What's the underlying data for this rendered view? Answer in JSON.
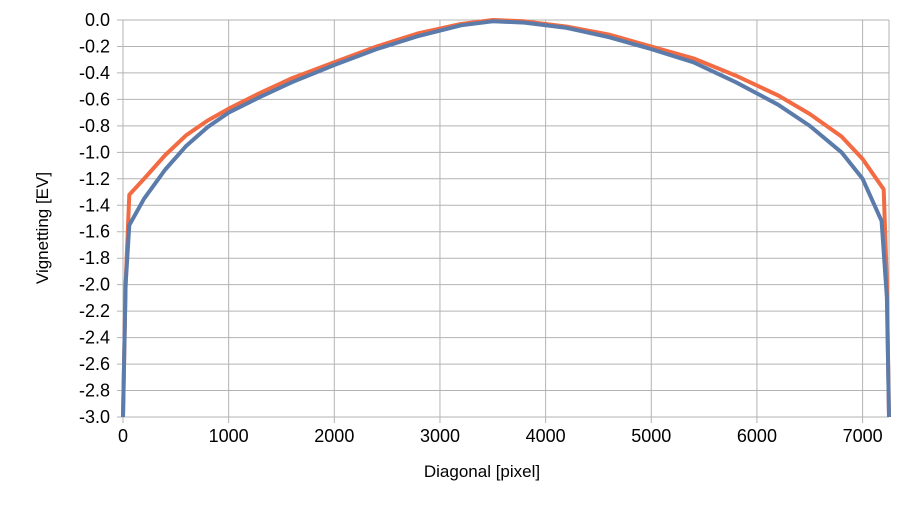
{
  "chart_data": {
    "type": "line",
    "title": "",
    "xlabel": "Diagonal [pixel]",
    "ylabel": "Vignetting [EV]",
    "xlim": [
      0,
      7250
    ],
    "ylim": [
      -3.0,
      0.0
    ],
    "grid": true,
    "legend": "none",
    "x_ticks": [
      {
        "value": 0,
        "label": "0"
      },
      {
        "value": 1000,
        "label": "1000"
      },
      {
        "value": 2000,
        "label": "2000"
      },
      {
        "value": 3000,
        "label": "3000"
      },
      {
        "value": 4000,
        "label": "4000"
      },
      {
        "value": 5000,
        "label": "5000"
      },
      {
        "value": 6000,
        "label": "6000"
      },
      {
        "value": 7000,
        "label": "7000"
      }
    ],
    "y_ticks": [
      {
        "value": 0.0,
        "label": "0.0"
      },
      {
        "value": -0.2,
        "label": "-0.2"
      },
      {
        "value": -0.4,
        "label": "-0.4"
      },
      {
        "value": -0.6,
        "label": "-0.6"
      },
      {
        "value": -0.8,
        "label": "-0.8"
      },
      {
        "value": -1.0,
        "label": "-1.0"
      },
      {
        "value": -1.2,
        "label": "-1.2"
      },
      {
        "value": -1.4,
        "label": "-1.4"
      },
      {
        "value": -1.6,
        "label": "-1.6"
      },
      {
        "value": -1.8,
        "label": "-1.8"
      },
      {
        "value": -2.0,
        "label": "-2.0"
      },
      {
        "value": -2.2,
        "label": "-2.2"
      },
      {
        "value": -2.4,
        "label": "-2.4"
      },
      {
        "value": -2.6,
        "label": "-2.6"
      },
      {
        "value": -2.8,
        "label": "-2.8"
      },
      {
        "value": -3.0,
        "label": "-3.0"
      }
    ],
    "series": [
      {
        "color": "#f26b43",
        "points": [
          [
            0,
            -3.0
          ],
          [
            25,
            -2.0
          ],
          [
            60,
            -1.32
          ],
          [
            200,
            -1.2
          ],
          [
            400,
            -1.02
          ],
          [
            600,
            -0.87
          ],
          [
            800,
            -0.76
          ],
          [
            1000,
            -0.67
          ],
          [
            1300,
            -0.55
          ],
          [
            1600,
            -0.44
          ],
          [
            2000,
            -0.32
          ],
          [
            2400,
            -0.2
          ],
          [
            2800,
            -0.1
          ],
          [
            3200,
            -0.03
          ],
          [
            3500,
            0.0
          ],
          [
            3800,
            -0.01
          ],
          [
            4200,
            -0.05
          ],
          [
            4600,
            -0.11
          ],
          [
            5000,
            -0.2
          ],
          [
            5400,
            -0.29
          ],
          [
            5800,
            -0.42
          ],
          [
            6200,
            -0.57
          ],
          [
            6500,
            -0.71
          ],
          [
            6800,
            -0.88
          ],
          [
            7000,
            -1.05
          ],
          [
            7200,
            -1.28
          ],
          [
            7230,
            -2.0
          ],
          [
            7250,
            -3.0
          ]
        ]
      },
      {
        "color": "#5b7bab",
        "points": [
          [
            0,
            -3.0
          ],
          [
            25,
            -2.0
          ],
          [
            60,
            -1.55
          ],
          [
            200,
            -1.35
          ],
          [
            400,
            -1.13
          ],
          [
            600,
            -0.95
          ],
          [
            800,
            -0.81
          ],
          [
            1000,
            -0.7
          ],
          [
            1300,
            -0.58
          ],
          [
            1600,
            -0.47
          ],
          [
            2000,
            -0.34
          ],
          [
            2400,
            -0.22
          ],
          [
            2800,
            -0.12
          ],
          [
            3200,
            -0.04
          ],
          [
            3500,
            -0.01
          ],
          [
            3800,
            -0.02
          ],
          [
            4200,
            -0.06
          ],
          [
            4600,
            -0.13
          ],
          [
            5000,
            -0.22
          ],
          [
            5400,
            -0.32
          ],
          [
            5800,
            -0.47
          ],
          [
            6200,
            -0.64
          ],
          [
            6500,
            -0.8
          ],
          [
            6800,
            -1.0
          ],
          [
            7000,
            -1.2
          ],
          [
            7180,
            -1.52
          ],
          [
            7230,
            -2.1
          ],
          [
            7250,
            -3.0
          ]
        ]
      }
    ]
  }
}
